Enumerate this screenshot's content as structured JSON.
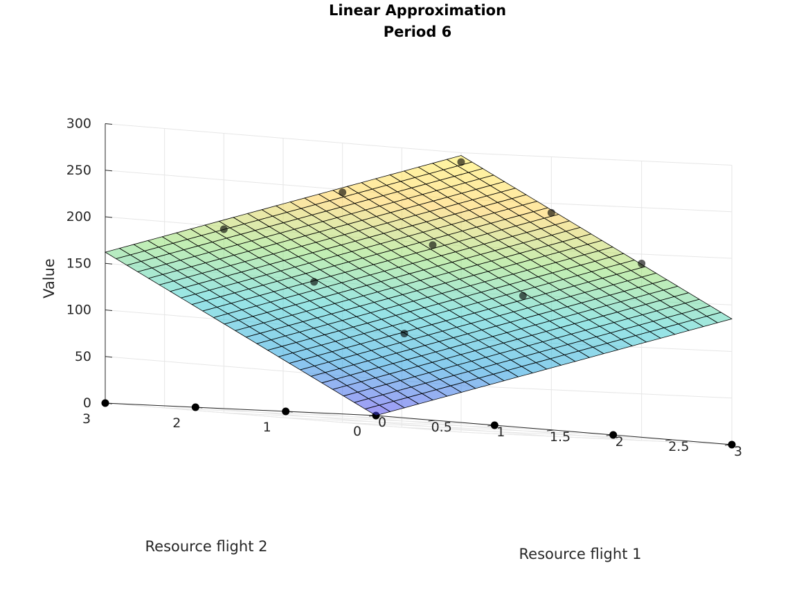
{
  "chart_data": {
    "type": "surface3d",
    "title_lines": [
      "Linear Approximation",
      "Period 6"
    ],
    "xlabel": "Resource flight 1",
    "ylabel": "Resource flight 2",
    "zlabel": "Value",
    "xlim": [
      0,
      3
    ],
    "ylim": [
      0,
      3
    ],
    "zlim": [
      0,
      300
    ],
    "x_ticks": [
      "0",
      "0.5",
      "1",
      "1.5",
      "2",
      "2.5",
      "3"
    ],
    "x_tick_values": [
      0,
      0.5,
      1,
      1.5,
      2,
      2.5,
      3
    ],
    "y_ticks": [
      "0",
      "1",
      "2",
      "3"
    ],
    "y_tick_values": [
      0,
      1,
      2,
      3
    ],
    "z_ticks": [
      "0",
      "50",
      "100",
      "150",
      "200",
      "250",
      "300"
    ],
    "z_tick_values": [
      0,
      50,
      100,
      150,
      200,
      250,
      300
    ],
    "grid": true,
    "surface": {
      "equation": "z = 0 + 45*x + 54*y",
      "intercept": 0,
      "slope_x": 45,
      "slope_y": 54,
      "x_range": [
        0,
        3
      ],
      "y_range": [
        0,
        3
      ],
      "divisions": 25,
      "colormap": [
        "#4433ee",
        "#1199dd",
        "#33cccc",
        "#88dd66",
        "#ffcc44",
        "#ffee44"
      ],
      "opacity": 0.5,
      "edge_color": "#000000"
    },
    "points": [
      {
        "x": 0,
        "y": 0,
        "z": 0
      },
      {
        "x": 1,
        "y": 0,
        "z": 0
      },
      {
        "x": 2,
        "y": 0,
        "z": 0
      },
      {
        "x": 3,
        "y": 0,
        "z": 0
      },
      {
        "x": 0,
        "y": 1,
        "z": 0
      },
      {
        "x": 0,
        "y": 2,
        "z": 0
      },
      {
        "x": 0,
        "y": 3,
        "z": 0
      },
      {
        "x": 1,
        "y": 1,
        "z": 94
      },
      {
        "x": 1,
        "y": 2,
        "z": 145
      },
      {
        "x": 1,
        "y": 3,
        "z": 197
      },
      {
        "x": 2,
        "y": 1,
        "z": 145
      },
      {
        "x": 2,
        "y": 2,
        "z": 195
      },
      {
        "x": 2,
        "y": 3,
        "z": 247
      },
      {
        "x": 3,
        "y": 1,
        "z": 190
      },
      {
        "x": 3,
        "y": 2,
        "z": 240
      },
      {
        "x": 3,
        "y": 3,
        "z": 290
      }
    ],
    "point_color": "#000000"
  }
}
